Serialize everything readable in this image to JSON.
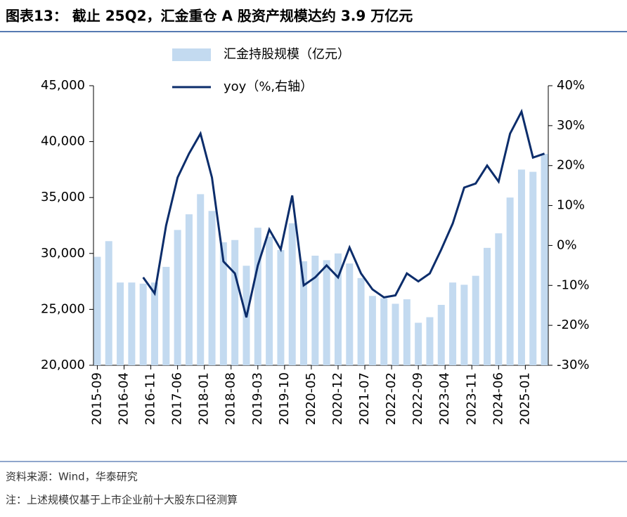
{
  "chart_data": {
    "type": "bar-line",
    "title": "图表13： 截止 25Q2，汇金重仓 A 股资产规模达约 3.9 万亿元",
    "source": "资料来源：Wind，华泰研究",
    "note": "注：上述规模仅基于上市企业前十大股东口径测算",
    "x": [
      "2015-09",
      "2015-12",
      "2016-03",
      "2016-06",
      "2016-09",
      "2016-12",
      "2017-03",
      "2017-06",
      "2017-09",
      "2017-12",
      "2018-03",
      "2018-06",
      "2018-09",
      "2018-12",
      "2019-03",
      "2019-06",
      "2019-09",
      "2019-12",
      "2020-03",
      "2020-06",
      "2020-09",
      "2020-12",
      "2021-03",
      "2021-06",
      "2021-09",
      "2021-12",
      "2022-03",
      "2022-06",
      "2022-09",
      "2022-12",
      "2023-03",
      "2023-06",
      "2023-09",
      "2023-12",
      "2024-03",
      "2024-06",
      "2024-09",
      "2024-12",
      "2025-03",
      "2025-06"
    ],
    "xlim": [
      "2015-08",
      "2025-07"
    ],
    "xticks": [
      "2015-09",
      "2016-04",
      "2016-11",
      "2017-06",
      "2018-01",
      "2018-08",
      "2019-03",
      "2019-10",
      "2020-05",
      "2020-12",
      "2021-07",
      "2022-02",
      "2022-09",
      "2023-04",
      "2023-11",
      "2024-06",
      "2025-01"
    ],
    "series": [
      {
        "name": "汇金持股规模（亿元）",
        "color": "#c3daf0",
        "kind": "bar",
        "values": [
          29700,
          31100,
          27400,
          27400,
          27300,
          27400,
          28800,
          32100,
          33500,
          35300,
          33800,
          31000,
          31200,
          28900,
          32300,
          31500,
          30300,
          32700,
          29300,
          29800,
          29400,
          30000,
          29100,
          27800,
          26200,
          26000,
          25500,
          25900,
          23800,
          24300,
          25400,
          27400,
          27200,
          28000,
          30500,
          31800,
          35000,
          37500,
          37300,
          38900
        ]
      },
      {
        "name": "yoy（%,右轴）",
        "color": "#0c2d6b",
        "kind": "line",
        "axis": "y2",
        "values": [
          null,
          null,
          null,
          null,
          -8,
          -12,
          5,
          17,
          23,
          28,
          17,
          -4,
          -7,
          -18,
          -5,
          4,
          -1,
          12.5,
          -10,
          -8,
          -5,
          -8,
          -0.5,
          -7,
          -11,
          -13,
          -12.5,
          -7,
          -9,
          -7,
          -1,
          5.5,
          14.5,
          15.5,
          20,
          16,
          28,
          33.5,
          22,
          23
        ]
      }
    ],
    "ylim": [
      20000,
      45000
    ],
    "yticks": [
      {
        "value": 20000,
        "label": "20,000"
      },
      {
        "value": 25000,
        "label": "25,000"
      },
      {
        "value": 30000,
        "label": "30,000"
      },
      {
        "value": 35000,
        "label": "35,000"
      },
      {
        "value": 40000,
        "label": "40,000"
      },
      {
        "value": 45000,
        "label": "45,000"
      }
    ],
    "y2lim": [
      -30,
      40
    ],
    "y2ticks": [
      {
        "value": -30,
        "label": "-30%"
      },
      {
        "value": -20,
        "label": "-20%"
      },
      {
        "value": -10,
        "label": "-10%"
      },
      {
        "value": 0,
        "label": "0%"
      },
      {
        "value": 10,
        "label": "10%"
      },
      {
        "value": 20,
        "label": "20%"
      },
      {
        "value": 30,
        "label": "30%"
      },
      {
        "value": 40,
        "label": "40%"
      }
    ]
  }
}
